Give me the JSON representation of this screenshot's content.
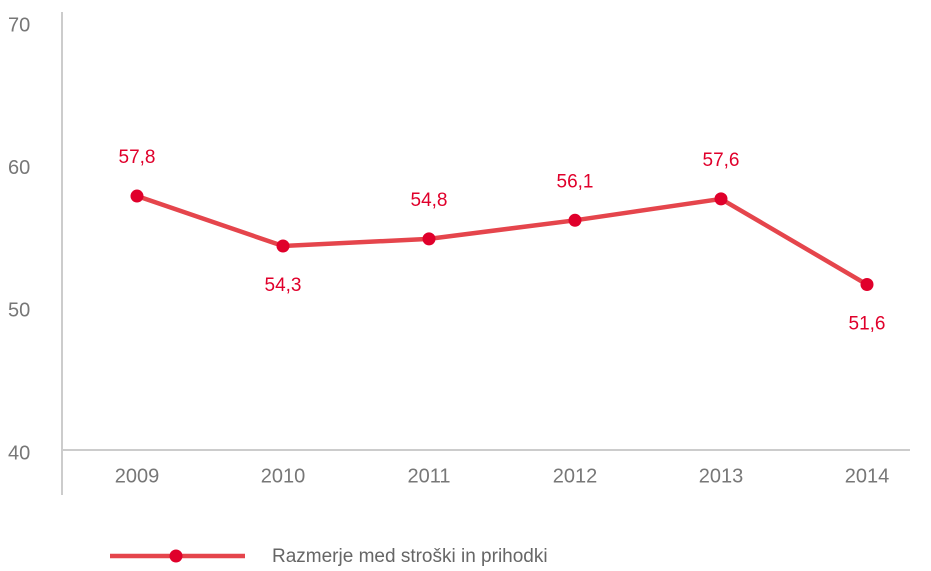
{
  "chart_data": {
    "type": "line",
    "categories": [
      "2009",
      "2010",
      "2011",
      "2012",
      "2013",
      "2014"
    ],
    "series": [
      {
        "name": "Razmerje med stroški in prihodki",
        "color": "#e5454c",
        "marker_color": "#e0002b",
        "values": [
          57.8,
          54.3,
          54.8,
          56.1,
          57.6,
          51.6
        ],
        "value_labels": [
          "57,8",
          "54,3",
          "54,8",
          "56,1",
          "57,6",
          "51,6"
        ]
      }
    ],
    "ylim": [
      40,
      70
    ],
    "yticks": [
      40,
      50,
      60,
      70
    ],
    "legend": "bottom"
  }
}
